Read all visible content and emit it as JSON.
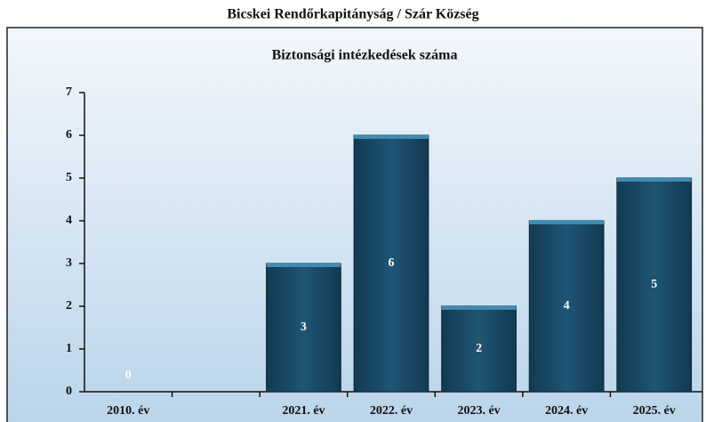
{
  "chart_data": {
    "type": "bar",
    "title": "Bicskei Rendőrkapitányság / Szár Község",
    "subtitle": "Biztonsági intézkedések száma",
    "categories": [
      "2010. év",
      null,
      "2021. év",
      "2022. év",
      "2023. év",
      "2024. év",
      "2025. év"
    ],
    "values": [
      0,
      null,
      3,
      6,
      2,
      4,
      5
    ],
    "color": "#1b4b68",
    "ylim": [
      0,
      7
    ],
    "yticks": [
      0,
      1,
      2,
      3,
      4,
      5,
      6,
      7
    ],
    "grid": false
  }
}
